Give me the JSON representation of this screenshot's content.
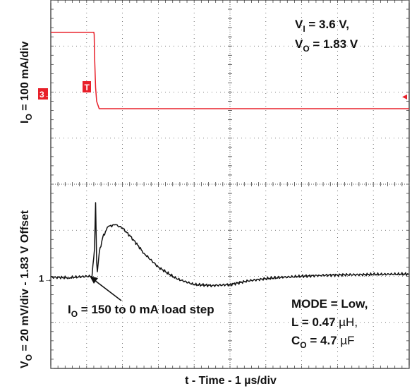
{
  "chart_data": {
    "type": "line",
    "xlabel": "t - Time - 1 µs/div",
    "ylabel_top": {
      "main": "I",
      "sub": "O",
      "rest": " = 100 mA/div"
    },
    "ylabel_bottom": {
      "main": "V",
      "sub": "O",
      "rest": " = 20 mV/div - 1.83 V Offset"
    },
    "x_divisions": 10,
    "y_divisions": 8,
    "grid": true,
    "conditions_top_right": [
      {
        "main": "V",
        "sub": "I",
        "rest": " = 3.6 V,"
      },
      {
        "main": "V",
        "sub": "O",
        "rest": " = 1.83 V"
      }
    ],
    "conditions_bottom_right": {
      "line1": "MODE = Low,",
      "line2_prefix": "L = 0.47 ",
      "line2_unit": "µH,",
      "line3": {
        "main": "C",
        "sub": "O",
        "rest": " = 4.7 ",
        "unit": "µF"
      }
    },
    "annotation": {
      "main": "I",
      "sub": "O",
      "rest": " = 150 to 0 mA load step"
    },
    "series": [
      {
        "name": "",
        "marker": "3",
        "color": "#e8202a",
        "x": [
          0,
          1.2,
          1.21,
          1.22,
          1.25,
          1.28,
          1.35,
          10
        ],
        "y": [
          7.3,
          7.3,
          7.25,
          6.8,
          6.1,
          5.8,
          5.64,
          5.64
        ]
      },
      {
        "name": "",
        "marker": "1",
        "color": "#111111",
        "x": [
          0,
          0.5,
          1.0,
          1.15,
          1.22,
          1.25,
          1.28,
          1.3,
          1.35,
          1.45,
          1.6,
          1.8,
          2.0,
          2.3,
          2.6,
          3.0,
          3.5,
          4.0,
          4.5,
          5.0,
          5.5,
          6.0,
          6.5,
          7.0,
          7.5,
          8.0,
          9.0,
          10
        ],
        "y": [
          1.98,
          1.97,
          2.0,
          2.0,
          2.6,
          3.6,
          2.3,
          2.1,
          2.5,
          2.85,
          3.08,
          3.12,
          3.05,
          2.8,
          2.5,
          2.2,
          1.95,
          1.82,
          1.8,
          1.82,
          1.9,
          1.95,
          1.98,
          2.0,
          2.02,
          2.03,
          2.04,
          2.05
        ]
      }
    ]
  }
}
